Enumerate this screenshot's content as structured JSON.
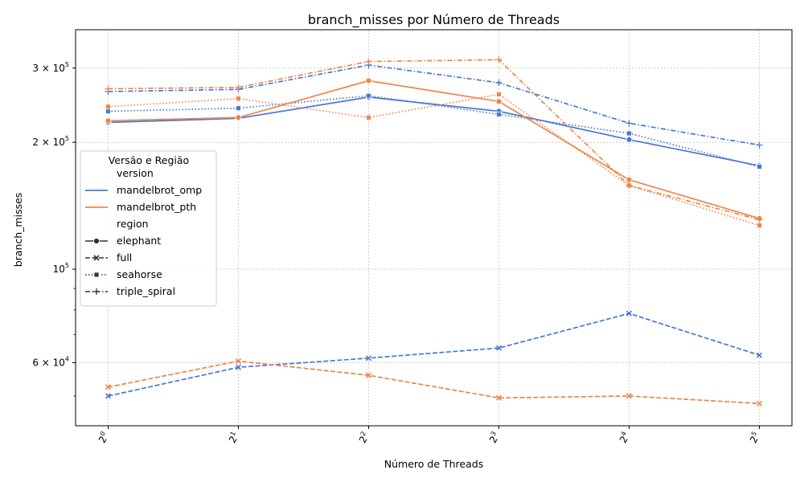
{
  "chart_data": {
    "type": "line",
    "title": "branch_misses por Número de Threads",
    "xlabel": "Número de Threads",
    "ylabel": "branch_misses",
    "x_scale": "log2",
    "y_scale": "log10",
    "x": [
      1,
      2,
      4,
      8,
      16,
      32
    ],
    "x_tick_labels": [
      {
        "base": "2",
        "exp": "0"
      },
      {
        "base": "2",
        "exp": "1"
      },
      {
        "base": "2",
        "exp": "2"
      },
      {
        "base": "2",
        "exp": "3"
      },
      {
        "base": "2",
        "exp": "4"
      },
      {
        "base": "2",
        "exp": "5"
      }
    ],
    "y_ticks": [
      {
        "value": 60000,
        "mant": "6 × 10",
        "exp": "4"
      },
      {
        "value": 100000,
        "mant": "10",
        "exp": "5"
      },
      {
        "value": 200000,
        "mant": "2 × 10",
        "exp": "5"
      },
      {
        "value": 300000,
        "mant": "3 × 10",
        "exp": "5"
      }
    ],
    "y_minor_ticks": [
      50000,
      70000,
      80000,
      90000
    ],
    "ylim": [
      42500,
      370000
    ],
    "grid": true,
    "legend": {
      "title": "Versão e Região",
      "placement": "center-left",
      "hue_title": "version",
      "style_title": "region",
      "hue_entries": [
        {
          "name": "mandelbrot_omp",
          "color": "#4878d0"
        },
        {
          "name": "mandelbrot_pth",
          "color": "#ee854a"
        }
      ],
      "style_entries": [
        {
          "name": "elephant",
          "dash": "solid",
          "marker": "circle"
        },
        {
          "name": "full",
          "dash": "dashed",
          "marker": "x"
        },
        {
          "name": "seahorse",
          "dash": "dotted",
          "marker": "square"
        },
        {
          "name": "triple_spiral",
          "dash": "dashdot",
          "marker": "plus"
        }
      ]
    },
    "series": [
      {
        "version": "mandelbrot_omp",
        "region": "elephant",
        "color": "#4878d0",
        "dash": "solid",
        "marker": "circle",
        "values": [
          223000,
          228000,
          256000,
          237000,
          203000,
          176000
        ]
      },
      {
        "version": "mandelbrot_omp",
        "region": "full",
        "color": "#4878d0",
        "dash": "dashed",
        "marker": "x",
        "values": [
          50000,
          58500,
          61500,
          65000,
          78500,
          62500
        ]
      },
      {
        "version": "mandelbrot_omp",
        "region": "seahorse",
        "color": "#4878d0",
        "dash": "dotted",
        "marker": "square",
        "values": [
          237000,
          241000,
          258000,
          233000,
          210000,
          175000
        ]
      },
      {
        "version": "mandelbrot_omp",
        "region": "triple_spiral",
        "color": "#4878d0",
        "dash": "dashdot",
        "marker": "plus",
        "values": [
          264000,
          267000,
          305000,
          277000,
          222000,
          197000
        ]
      },
      {
        "version": "mandelbrot_pth",
        "region": "elephant",
        "color": "#ee854a",
        "dash": "solid",
        "marker": "circle",
        "values": [
          225000,
          229000,
          280000,
          250000,
          163000,
          132000
        ]
      },
      {
        "version": "mandelbrot_pth",
        "region": "full",
        "color": "#ee854a",
        "dash": "dashed",
        "marker": "x",
        "values": [
          52500,
          60500,
          56000,
          49500,
          50000,
          48000
        ]
      },
      {
        "version": "mandelbrot_pth",
        "region": "seahorse",
        "color": "#ee854a",
        "dash": "dotted",
        "marker": "square",
        "values": [
          243000,
          254000,
          229000,
          260000,
          158000,
          127000
        ]
      },
      {
        "version": "mandelbrot_pth",
        "region": "triple_spiral",
        "color": "#ee854a",
        "dash": "dashdot",
        "marker": "plus",
        "values": [
          268000,
          270000,
          311000,
          314000,
          158000,
          131000
        ]
      }
    ]
  }
}
